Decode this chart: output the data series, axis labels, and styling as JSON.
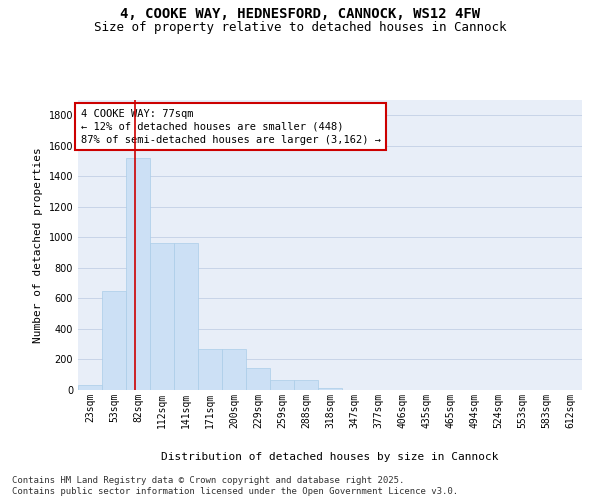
{
  "title_line1": "4, COOKE WAY, HEDNESFORD, CANNOCK, WS12 4FW",
  "title_line2": "Size of property relative to detached houses in Cannock",
  "xlabel": "Distribution of detached houses by size in Cannock",
  "ylabel": "Number of detached properties",
  "categories": [
    "23sqm",
    "53sqm",
    "82sqm",
    "112sqm",
    "141sqm",
    "171sqm",
    "200sqm",
    "229sqm",
    "259sqm",
    "288sqm",
    "318sqm",
    "347sqm",
    "377sqm",
    "406sqm",
    "435sqm",
    "465sqm",
    "494sqm",
    "524sqm",
    "553sqm",
    "583sqm",
    "612sqm"
  ],
  "values": [
    30,
    650,
    1520,
    960,
    960,
    270,
    270,
    145,
    65,
    65,
    10,
    0,
    0,
    0,
    0,
    0,
    0,
    0,
    0,
    0,
    0
  ],
  "bar_color": "#cce0f5",
  "bar_edge_color": "#aacde8",
  "vline_x": 1.87,
  "vline_color": "#cc0000",
  "annotation_text": "4 COOKE WAY: 77sqm\n← 12% of detached houses are smaller (448)\n87% of semi-detached houses are larger (3,162) →",
  "annotation_box_color": "#ffffff",
  "annotation_box_edgecolor": "#cc0000",
  "ylim": [
    0,
    1900
  ],
  "yticks": [
    0,
    200,
    400,
    600,
    800,
    1000,
    1200,
    1400,
    1600,
    1800
  ],
  "grid_color": "#c8d4e8",
  "background_color": "#e8eef8",
  "footer_line1": "Contains HM Land Registry data © Crown copyright and database right 2025.",
  "footer_line2": "Contains public sector information licensed under the Open Government Licence v3.0.",
  "title_fontsize": 10,
  "subtitle_fontsize": 9,
  "label_fontsize": 8,
  "tick_fontsize": 7,
  "annotation_fontsize": 7.5,
  "footer_fontsize": 6.5
}
